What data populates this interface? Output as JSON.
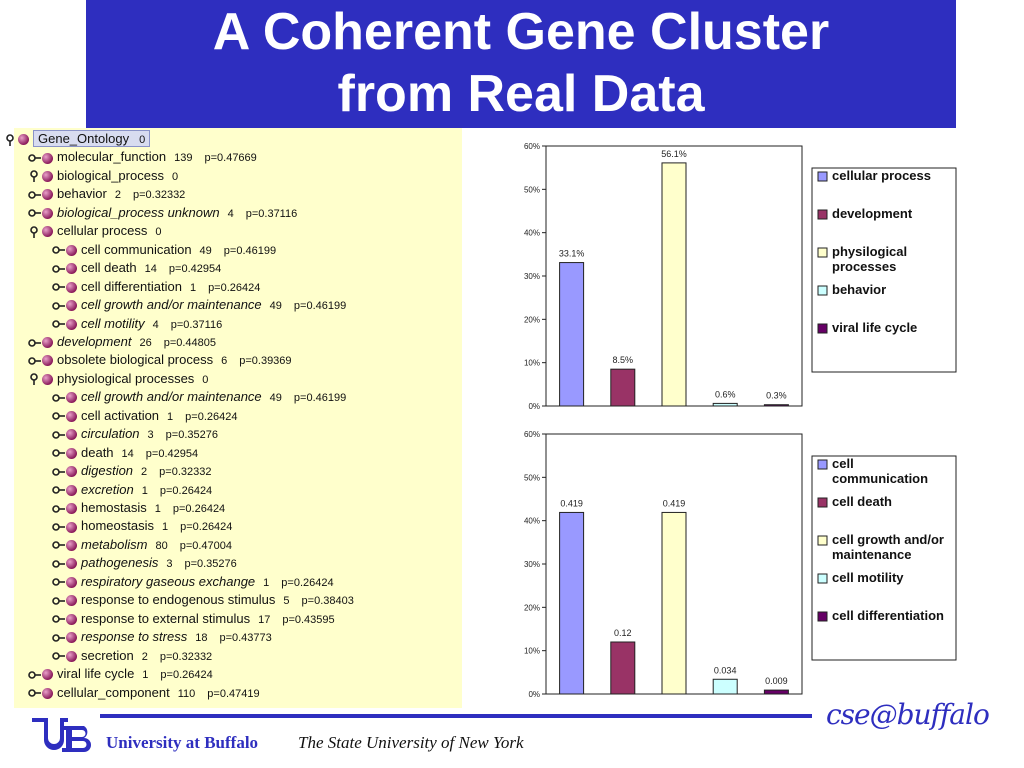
{
  "slide": {
    "title_line1": "A Coherent Gene Cluster",
    "title_line2": "from Real Data",
    "footer_university": "University at Buffalo",
    "footer_subtitle": "The State University of  New York",
    "cse_logo_text": "cse@buffalo",
    "colors": {
      "title_band": "#2e2ebf",
      "tree_bg": "#ffffcc"
    }
  },
  "tree": [
    {
      "name": "Gene_Ontology",
      "count": "0",
      "p": "",
      "italic": false,
      "level": 0,
      "toggle": "pin",
      "selected": true
    },
    {
      "name": "molecular_function",
      "count": "139",
      "p": "p=0.47669",
      "italic": false,
      "level": 1,
      "toggle": "arrow"
    },
    {
      "name": "biological_process",
      "count": "0",
      "p": "",
      "italic": false,
      "level": 1,
      "toggle": "pin"
    },
    {
      "name": "behavior",
      "count": "2",
      "p": "p=0.32332",
      "italic": false,
      "level": 2,
      "toggle": "arrow"
    },
    {
      "name": "biological_process unknown",
      "count": "4",
      "p": "p=0.37116",
      "italic": true,
      "level": 2,
      "toggle": "arrow"
    },
    {
      "name": "cellular process",
      "count": "0",
      "p": "",
      "italic": false,
      "level": 2,
      "toggle": "pin"
    },
    {
      "name": "cell communication",
      "count": "49",
      "p": "p=0.46199",
      "italic": false,
      "level": 3,
      "toggle": "arrow"
    },
    {
      "name": "cell death",
      "count": "14",
      "p": "p=0.42954",
      "italic": false,
      "level": 3,
      "toggle": "arrow"
    },
    {
      "name": "cell differentiation",
      "count": "1",
      "p": "p=0.26424",
      "italic": false,
      "level": 3,
      "toggle": "arrow"
    },
    {
      "name": "cell growth and/or maintenance",
      "count": "49",
      "p": "p=0.46199",
      "italic": true,
      "level": 3,
      "toggle": "arrow"
    },
    {
      "name": "cell motility",
      "count": "4",
      "p": "p=0.37116",
      "italic": true,
      "level": 3,
      "toggle": "arrow"
    },
    {
      "name": "development",
      "count": "26",
      "p": "p=0.44805",
      "italic": true,
      "level": 2,
      "toggle": "arrow"
    },
    {
      "name": "obsolete biological process",
      "count": "6",
      "p": "p=0.39369",
      "italic": false,
      "level": 2,
      "toggle": "arrow"
    },
    {
      "name": "physiological processes",
      "count": "0",
      "p": "",
      "italic": false,
      "level": 2,
      "toggle": "pin"
    },
    {
      "name": "cell growth and/or maintenance",
      "count": "49",
      "p": "p=0.46199",
      "italic": true,
      "level": 3,
      "toggle": "arrow"
    },
    {
      "name": "cell activation",
      "count": "1",
      "p": "p=0.26424",
      "italic": false,
      "level": 3,
      "toggle": "arrow"
    },
    {
      "name": "circulation",
      "count": "3",
      "p": "p=0.35276",
      "italic": true,
      "level": 3,
      "toggle": "arrow"
    },
    {
      "name": "death",
      "count": "14",
      "p": "p=0.42954",
      "italic": false,
      "level": 3,
      "toggle": "arrow"
    },
    {
      "name": "digestion",
      "count": "2",
      "p": "p=0.32332",
      "italic": true,
      "level": 3,
      "toggle": "arrow"
    },
    {
      "name": "excretion",
      "count": "1",
      "p": "p=0.26424",
      "italic": true,
      "level": 3,
      "toggle": "arrow"
    },
    {
      "name": "hemostasis",
      "count": "1",
      "p": "p=0.26424",
      "italic": false,
      "level": 3,
      "toggle": "arrow"
    },
    {
      "name": "homeostasis",
      "count": "1",
      "p": "p=0.26424",
      "italic": false,
      "level": 3,
      "toggle": "arrow"
    },
    {
      "name": "metabolism",
      "count": "80",
      "p": "p=0.47004",
      "italic": true,
      "level": 3,
      "toggle": "arrow"
    },
    {
      "name": "pathogenesis",
      "count": "3",
      "p": "p=0.35276",
      "italic": true,
      "level": 3,
      "toggle": "arrow"
    },
    {
      "name": "respiratory gaseous exchange",
      "count": "1",
      "p": "p=0.26424",
      "italic": true,
      "level": 3,
      "toggle": "arrow"
    },
    {
      "name": "response to endogenous stimulus",
      "count": "5",
      "p": "p=0.38403",
      "italic": false,
      "level": 3,
      "toggle": "arrow"
    },
    {
      "name": "response to external stimulus",
      "count": "17",
      "p": "p=0.43595",
      "italic": false,
      "level": 3,
      "toggle": "arrow"
    },
    {
      "name": "response to stress",
      "count": "18",
      "p": "p=0.43773",
      "italic": true,
      "level": 3,
      "toggle": "arrow"
    },
    {
      "name": "secretion",
      "count": "2",
      "p": "p=0.32332",
      "italic": false,
      "level": 3,
      "toggle": "arrow"
    },
    {
      "name": "viral life cycle",
      "count": "1",
      "p": "p=0.26424",
      "italic": false,
      "level": 2,
      "toggle": "arrow"
    },
    {
      "name": "cellular_component",
      "count": "110",
      "p": "p=0.47419",
      "italic": false,
      "level": 1,
      "toggle": "arrow"
    }
  ],
  "chart_data": [
    {
      "type": "bar",
      "categories": [
        "cellular process",
        "development",
        "physilogical processes",
        "behavior",
        "viral life cycle"
      ],
      "legend_labels": [
        [
          "cellular process"
        ],
        [
          "development"
        ],
        [
          "physilogical",
          "processes"
        ],
        [
          "behavior"
        ],
        [
          "viral life cycle"
        ]
      ],
      "values": [
        33.1,
        8.5,
        56.1,
        0.6,
        0.3
      ],
      "data_labels": [
        "33.1%",
        "8.5%",
        "56.1%",
        "0.6%",
        "0.3%"
      ],
      "colors": [
        "#9999ff",
        "#993366",
        "#ffffcc",
        "#ccffff",
        "#660066"
      ],
      "yticks": [
        "0%",
        "10%",
        "20%",
        "30%",
        "40%",
        "50%",
        "60%"
      ],
      "ylim": [
        0,
        60
      ],
      "grid": false,
      "legend": "right"
    },
    {
      "type": "bar",
      "categories": [
        "cell communication",
        "cell death",
        "cell growth and/or maintenance",
        "cell motility",
        "cell differentiation"
      ],
      "legend_labels": [
        [
          "cell",
          "communication"
        ],
        [
          "cell death"
        ],
        [
          "cell growth and/or",
          "maintenance"
        ],
        [
          "cell motility"
        ],
        [
          "cell differentiation"
        ]
      ],
      "values": [
        0.419,
        0.12,
        0.419,
        0.034,
        0.009
      ],
      "data_labels": [
        "0.419",
        "0.12",
        "0.419",
        "0.034",
        "0.009"
      ],
      "colors": [
        "#9999ff",
        "#993366",
        "#ffffcc",
        "#ccffff",
        "#660066"
      ],
      "yticks": [
        "0%",
        "10%",
        "20%",
        "30%",
        "40%",
        "50%",
        "60%"
      ],
      "ylim": [
        0,
        0.6
      ],
      "grid": false,
      "legend": "right"
    }
  ]
}
